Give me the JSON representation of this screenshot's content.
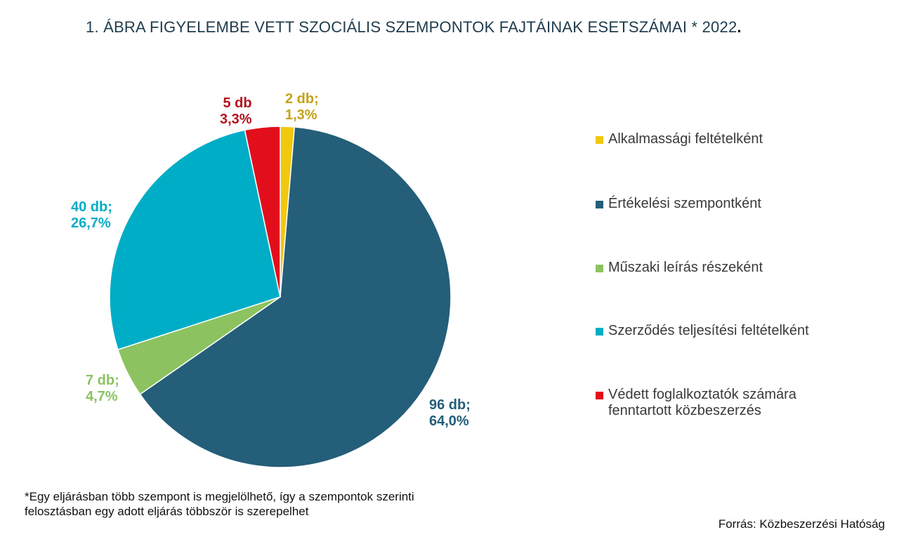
{
  "chart_data": {
    "type": "pie",
    "title": "1. ÁBRA FIGYELEMBE VETT SZOCIÁLIS SZEMPONTOK FAJTÁINAK ESETSZÁMAI * 2022",
    "title_end": ".",
    "start_angle": "top, clockwise",
    "slices": [
      {
        "name": "Alkalmassági feltételként",
        "value": 2,
        "percent": 1.3,
        "label1": "2 db;",
        "label2": "1,3%",
        "color": "#f2c80f",
        "label_color": "#c4a21a"
      },
      {
        "name": "Értékelési szempontként",
        "value": 96,
        "percent": 64.0,
        "label1": "96 db;",
        "label2": "64,0%",
        "color": "#245e79",
        "label_color": "#245e79"
      },
      {
        "name": "Műszaki leírás részeként",
        "value": 7,
        "percent": 4.7,
        "label1": "7 db;",
        "label2": "4,7%",
        "color": "#8cc360",
        "label_color": "#8cc360"
      },
      {
        "name": "Szerződés teljesítési feltételként",
        "value": 40,
        "percent": 26.7,
        "label1": "40 db;",
        "label2": "26,7%",
        "color": "#00adc6",
        "label_color": "#00adc6"
      },
      {
        "name": "Védett foglalkoztatók számára fenntartott közbeszerzés",
        "name_line1": "Védett foglalkoztatók számára",
        "name_line2": "fenntartott közbeszerzés",
        "value": 5,
        "percent": 3.3,
        "label1": "5 db",
        "label2": "3,3%",
        "color": "#e30e1c",
        "label_color": "#b2131e"
      }
    ],
    "legend_position": "right"
  },
  "footnote_line1": "*Egy eljárásban több szempont is megjelölhető, így a szempontok szerinti",
  "footnote_line2": "felosztásban egy adott eljárás többször is szerepelhet",
  "source": "Forrás: Közbeszerzési Hatóság"
}
